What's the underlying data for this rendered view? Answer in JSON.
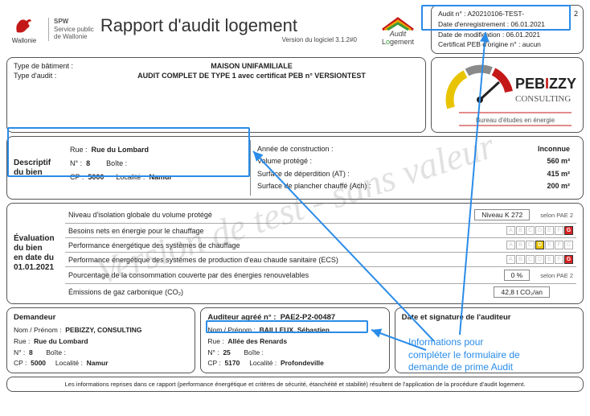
{
  "watermark": "Version de test - sans valeur",
  "header": {
    "wallonie_label": "Wallonie",
    "spw_line1": "SPW",
    "spw_line2": "Service public",
    "spw_line3": "de Wallonie",
    "title": "Rapport d'audit logement",
    "version": "Version du logiciel 3.1.2#0",
    "audit_logo_top": "Audit",
    "audit_logo_bottom": "Logement"
  },
  "meta": {
    "audit_no_label": "Audit n° :",
    "audit_no_value": "A20210106-TEST-",
    "date_enreg_label": "Date d'enregistrement :",
    "date_enreg_value": "06.01.2021",
    "date_modif_label": "Date de modification :",
    "date_modif_value": "06.01.2021",
    "cert_label": "Certificat PEB d'origine n° :",
    "cert_value": "aucun",
    "page": "2"
  },
  "types": {
    "bat_label": "Type de bâtiment :",
    "bat_value": "MAISON UNIFAMILIALE",
    "audit_label": "Type d'audit :",
    "audit_value": "AUDIT COMPLET DE TYPE 1 avec certificat PEB n° VERSIONTEST"
  },
  "pebizzy": {
    "name_top": "PEBIZZY",
    "name_bottom": "CONSULTING",
    "tagline": "Bureau d'études en énergie"
  },
  "descriptif": {
    "side_label": "Descriptif du bien",
    "rue_label": "Rue :",
    "rue_value": "Rue du Lombard",
    "no_label": "N° :",
    "no_value": "8",
    "boite_label": "Boîte :",
    "boite_value": "",
    "cp_label": "CP :",
    "cp_value": "5000",
    "loc_label": "Localité :",
    "loc_value": "Namur",
    "annee_label": "Année de construction :",
    "annee_value": "Inconnue",
    "vol_label": "Volume protégé :",
    "vol_value": "560 m³",
    "surf_at_label": "Surface de déperdition (AT) :",
    "surf_at_value": "415 m²",
    "surf_ach_label": "Surface de plancher chauffé (Ach) :",
    "surf_ach_value": "200 m²"
  },
  "eval": {
    "side1": "Évaluation",
    "side2": "du bien",
    "side3": "en date du",
    "side4": "01.01.2021",
    "r1": "Niveau d'isolation globale du volume protégé",
    "r1_badge": "Niveau K 272",
    "r1_selon": "selon PAE 2",
    "r2": "Besoins nets en énergie pour le chauffage",
    "r2_letter": "G",
    "r2_color": "#d92020",
    "r3": "Performance énergétique des systèmes de chauffage",
    "r3_letter": "D",
    "r3_color": "#e8c400",
    "r4": "Performance énergétique des systèmes de production d'eau chaude sanitaire (ECS)",
    "r4_letter": "G",
    "r4_color": "#d92020",
    "r5": "Pourcentage de la consommation couverte par des énergies renouvelables",
    "r5_val": "0 %",
    "r5_selon": "selon PAE 2",
    "r6": "Émissions de gaz carbonique (CO₂)",
    "r6_val": "42,8 t CO₂/an"
  },
  "demandeur": {
    "hd": "Demandeur",
    "nom_label": "Nom / Prénom :",
    "nom_value": "PEBIZZY, CONSULTING",
    "rue_label": "Rue :",
    "rue_value": "Rue du Lombard",
    "no_label": "N° :",
    "no_value": "8",
    "boite_label": "Boîte :",
    "cp_label": "CP :",
    "cp_value": "5000",
    "loc_label": "Localité :",
    "loc_value": "Namur"
  },
  "auditeur": {
    "hd": "Auditeur agréé n° :",
    "hd_no": "PAE2-P2-00487",
    "nom_label": "Nom / Prénom :",
    "nom_value": "BAILLEUX, Sébastien",
    "rue_label": "Rue :",
    "rue_value": "Allée des Renards",
    "no_label": "N° :",
    "no_value": "25",
    "boite_label": "Boîte :",
    "cp_label": "CP :",
    "cp_value": "5170",
    "loc_label": "Localité :",
    "loc_value": "Profondeville"
  },
  "signature": {
    "hd": "Date et signature de l'auditeur"
  },
  "footer": "Les informations reprises dans ce rapport (performance énergétique et critères de sécurité, étanchéité et stabilité) résultent de l'application de la procédure d'audit logement.",
  "annotation": {
    "l1": "Informations pour",
    "l2": "compléter le formulaire de",
    "l3": "demande de prime Audit"
  },
  "style": {
    "highlight_color": "#2a8ce8",
    "letter_colors": {
      "A": "#0a8a2a",
      "B": "#5fb030",
      "C": "#b8d000",
      "D": "#e8c400",
      "E": "#f09000",
      "F": "#e85000",
      "G": "#d92020"
    }
  }
}
